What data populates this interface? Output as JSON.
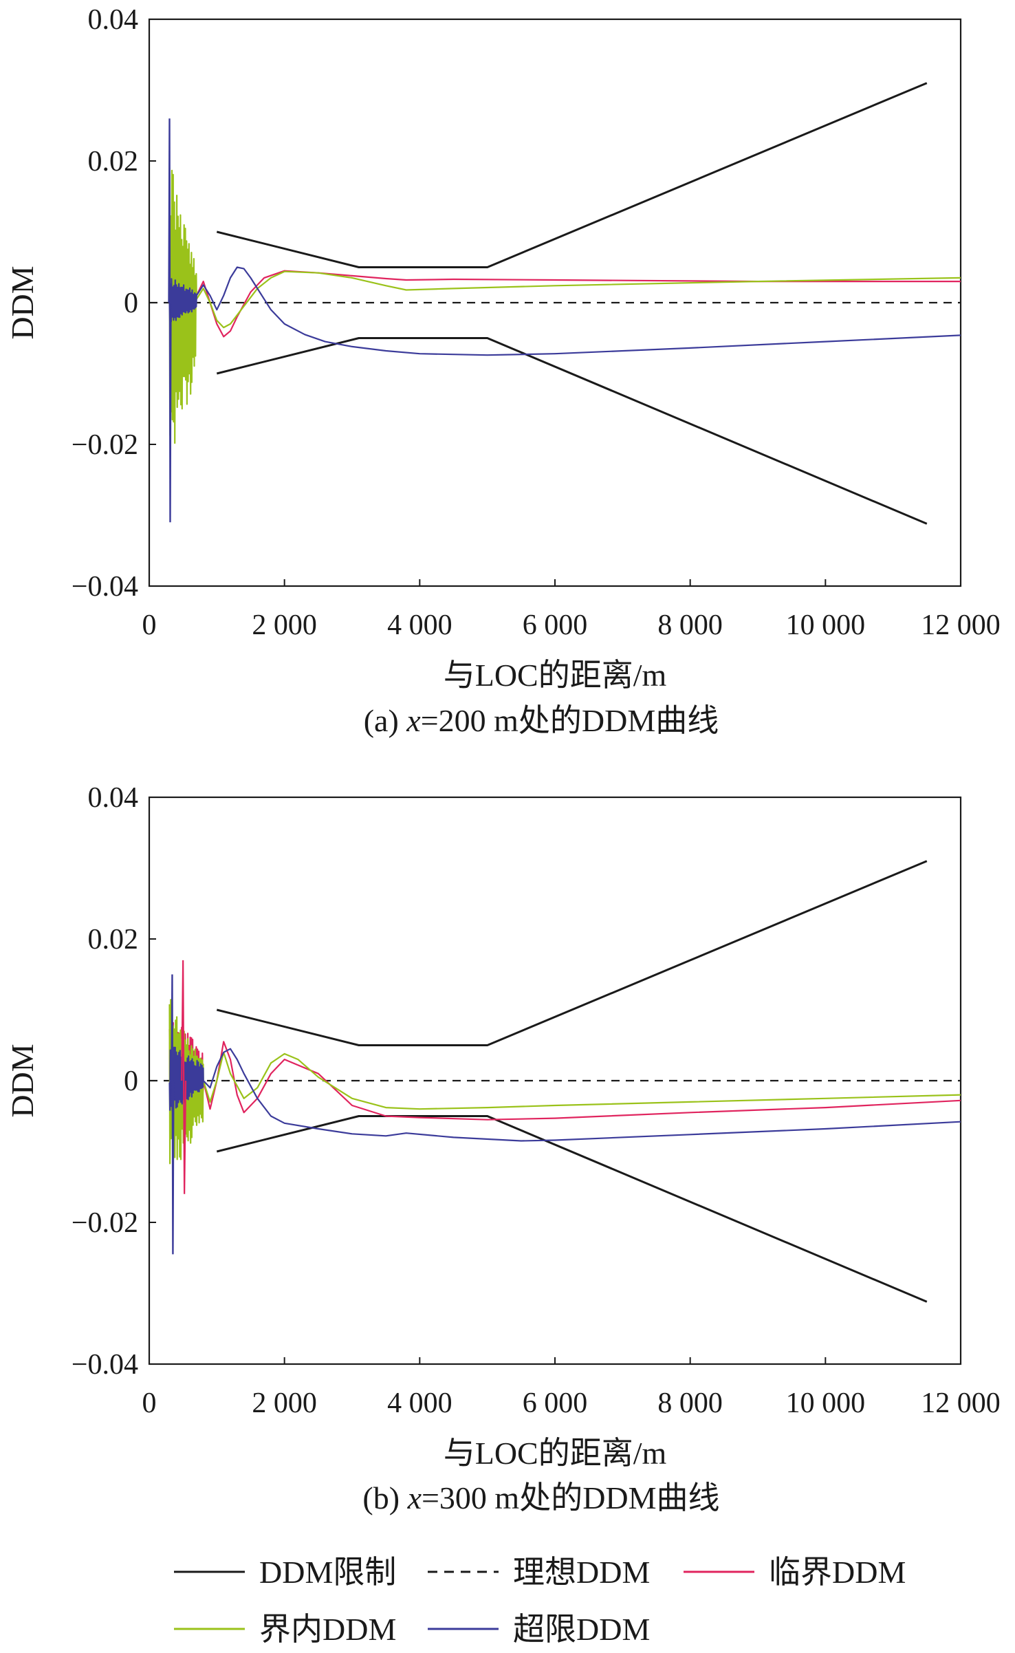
{
  "chart_data": [
    {
      "type": "line",
      "caption": "(a) x=200 m处的DDM曲线",
      "caption_prefix": "(a) ",
      "caption_var": "x",
      "caption_rest": "=200 m处的DDM曲线",
      "xlabel": "与LOC的距离/m",
      "ylabel": "DDM",
      "xlim": [
        0,
        12000
      ],
      "ylim": [
        -0.04,
        0.04
      ],
      "xticks": [
        0,
        2000,
        4000,
        6000,
        8000,
        10000,
        12000
      ],
      "xtick_labels": [
        "0",
        "2 000",
        "4 000",
        "6 000",
        "8 000",
        "10 000",
        "12 000"
      ],
      "yticks": [
        0.04,
        0.02,
        0,
        -0.02,
        -0.04
      ],
      "ytick_labels": [
        "0.04",
        "0.02",
        "0",
        "−0.02",
        "−0.04"
      ],
      "series": [
        {
          "name": "DDM限制",
          "color": "#1a1a1a",
          "dash": "solid",
          "x": [
            1000,
            3100,
            5000,
            11500
          ],
          "y": [
            0.01,
            0.005,
            0.005,
            0.031
          ]
        },
        {
          "name": "DDM限制",
          "color": "#1a1a1a",
          "dash": "solid",
          "x": [
            1000,
            3100,
            5000,
            11500
          ],
          "y": [
            -0.01,
            -0.005,
            -0.005,
            -0.0312
          ]
        },
        {
          "name": "理想DDM",
          "color": "#1a1a1a",
          "dash": "dashed",
          "x": [
            0,
            12000
          ],
          "y": [
            0,
            0
          ]
        },
        {
          "name": "临界DDM",
          "color": "#e0245e",
          "dash": "solid",
          "x": [
            700,
            800,
            900,
            1000,
            1100,
            1200,
            1300,
            1500,
            1700,
            2000,
            2500,
            3000,
            3500,
            3800,
            4500,
            6000,
            9000,
            12000
          ],
          "y": [
            0.001,
            0.003,
            0.0,
            -0.003,
            -0.0048,
            -0.004,
            -0.002,
            0.0015,
            0.0035,
            0.0045,
            0.0042,
            0.0038,
            0.0034,
            0.0032,
            0.0033,
            0.0032,
            0.003,
            0.003
          ]
        },
        {
          "name": "界内DDM",
          "color": "#9ac21a",
          "dash": "solid",
          "x": [
            700,
            800,
            900,
            1000,
            1100,
            1200,
            1400,
            1600,
            1800,
            2000,
            2500,
            3000,
            3500,
            3800,
            4500,
            6000,
            9000,
            12000
          ],
          "y": [
            0.0005,
            0.002,
            0.0,
            -0.0025,
            -0.0035,
            -0.003,
            -0.0005,
            0.002,
            0.0035,
            0.0044,
            0.0042,
            0.0035,
            0.0024,
            0.0018,
            0.002,
            0.0024,
            0.003,
            0.0035
          ]
        },
        {
          "name": "超限DDM",
          "color": "#3b3b9a",
          "dash": "solid",
          "x": [
            700,
            800,
            900,
            1000,
            1100,
            1200,
            1300,
            1400,
            1500,
            1600,
            1800,
            2000,
            2300,
            2600,
            3000,
            3500,
            4000,
            5000,
            6000,
            8000,
            10000,
            12000
          ],
          "y": [
            0.001,
            0.0025,
            0.001,
            -0.001,
            0.001,
            0.0035,
            0.005,
            0.0048,
            0.0035,
            0.002,
            -0.001,
            -0.003,
            -0.0045,
            -0.0055,
            -0.0062,
            -0.0068,
            -0.0072,
            -0.0074,
            -0.0072,
            -0.0064,
            -0.0055,
            -0.0046
          ]
        }
      ]
    },
    {
      "type": "line",
      "caption": "(b) x=300 m处的DDM曲线",
      "caption_prefix": "(b) ",
      "caption_var": "x",
      "caption_rest": "=300 m处的DDM曲线",
      "xlabel": "与LOC的距离/m",
      "ylabel": "DDM",
      "xlim": [
        0,
        12000
      ],
      "ylim": [
        -0.04,
        0.04
      ],
      "xticks": [
        0,
        2000,
        4000,
        6000,
        8000,
        10000,
        12000
      ],
      "xtick_labels": [
        "0",
        "2 000",
        "4 000",
        "6 000",
        "8 000",
        "10 000",
        "12 000"
      ],
      "yticks": [
        0.04,
        0.02,
        0,
        -0.02,
        -0.04
      ],
      "ytick_labels": [
        "0.04",
        "0.02",
        "0",
        "−0.02",
        "−0.04"
      ],
      "series": [
        {
          "name": "DDM限制",
          "color": "#1a1a1a",
          "dash": "solid",
          "x": [
            1000,
            3100,
            5000,
            11500
          ],
          "y": [
            0.01,
            0.005,
            0.005,
            0.031
          ]
        },
        {
          "name": "DDM限制",
          "color": "#1a1a1a",
          "dash": "solid",
          "x": [
            1000,
            3100,
            5000,
            11500
          ],
          "y": [
            -0.01,
            -0.005,
            -0.005,
            -0.0312
          ]
        },
        {
          "name": "理想DDM",
          "color": "#1a1a1a",
          "dash": "dashed",
          "x": [
            0,
            12000
          ],
          "y": [
            0,
            0
          ]
        },
        {
          "name": "临界DDM",
          "color": "#e0245e",
          "dash": "solid",
          "x": [
            800,
            900,
            1000,
            1100,
            1200,
            1300,
            1400,
            1600,
            1800,
            2000,
            2500,
            3000,
            3500,
            4000,
            5000,
            6000,
            8000,
            10000,
            12000
          ],
          "y": [
            0.0,
            -0.004,
            0.0,
            0.0055,
            0.003,
            -0.002,
            -0.0045,
            -0.0025,
            0.001,
            0.003,
            0.001,
            -0.0035,
            -0.005,
            -0.0052,
            -0.0055,
            -0.0053,
            -0.0045,
            -0.0038,
            -0.0028
          ]
        },
        {
          "name": "界内DDM",
          "color": "#9ac21a",
          "dash": "solid",
          "x": [
            800,
            900,
            1000,
            1100,
            1200,
            1400,
            1600,
            1800,
            2000,
            2200,
            2500,
            3000,
            3500,
            4000,
            5000,
            6000,
            8000,
            10000,
            12000
          ],
          "y": [
            0.0,
            -0.003,
            0.0,
            0.004,
            0.001,
            -0.0025,
            -0.001,
            0.0025,
            0.0038,
            0.003,
            0.0005,
            -0.0025,
            -0.0038,
            -0.004,
            -0.0038,
            -0.0035,
            -0.003,
            -0.0025,
            -0.002
          ]
        },
        {
          "name": "超限DDM",
          "color": "#3b3b9a",
          "dash": "solid",
          "x": [
            800,
            900,
            1000,
            1100,
            1200,
            1300,
            1400,
            1600,
            1800,
            2000,
            2500,
            3000,
            3500,
            3800,
            4500,
            5500,
            6000,
            8000,
            10000,
            12000
          ],
          "y": [
            0.0,
            -0.001,
            0.002,
            0.004,
            0.0045,
            0.003,
            0.001,
            -0.0025,
            -0.005,
            -0.006,
            -0.0068,
            -0.0075,
            -0.0078,
            -0.0074,
            -0.008,
            -0.0085,
            -0.0084,
            -0.0076,
            -0.0068,
            -0.0058
          ]
        }
      ]
    }
  ],
  "legend": {
    "placement": "bottom",
    "items": [
      {
        "label": "DDM限制",
        "color": "#1a1a1a",
        "dash": "solid"
      },
      {
        "label": "理想DDM",
        "color": "#1a1a1a",
        "dash": "dashed"
      },
      {
        "label": "临界DDM",
        "color": "#e0245e",
        "dash": "solid"
      },
      {
        "label": "界内DDM",
        "color": "#9ac21a",
        "dash": "solid"
      },
      {
        "label": "超限DDM",
        "color": "#3b3b9a",
        "dash": "solid"
      }
    ]
  }
}
